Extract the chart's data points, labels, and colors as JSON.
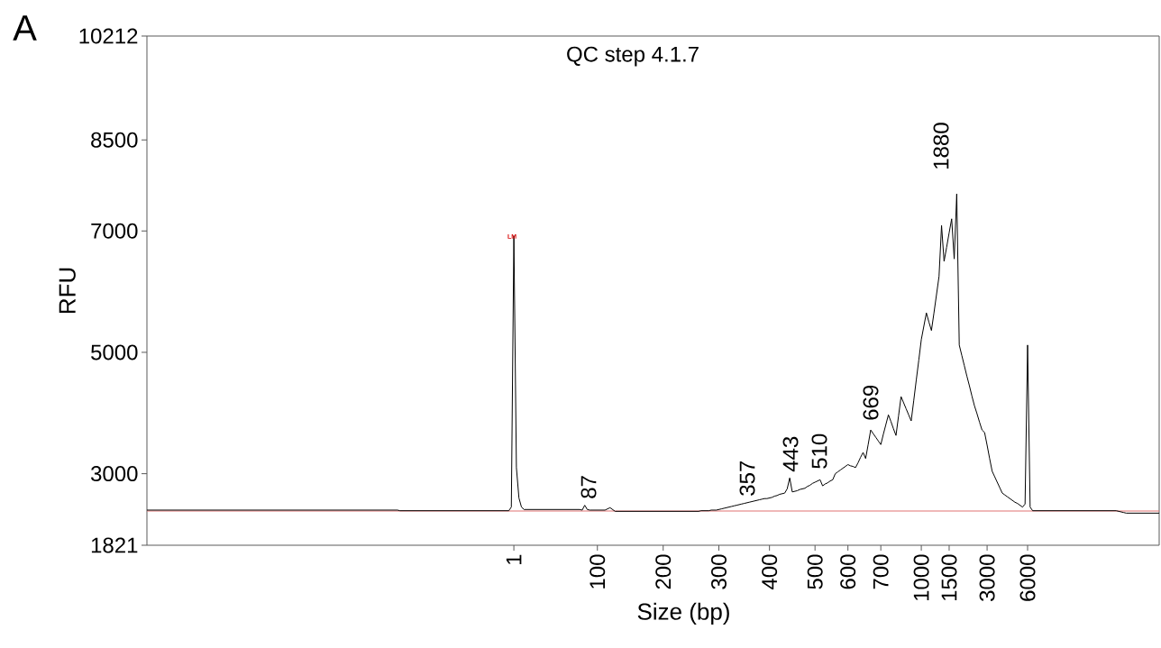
{
  "chart_data": {
    "type": "line",
    "title": "QC step 4.1.7",
    "xlabel": "Size (bp)",
    "ylabel": "RFU",
    "annotations": [
      "A",
      "LM",
      "87",
      "357",
      "443",
      "510",
      "669",
      "1880"
    ],
    "categories": [
      null,
      null,
      null,
      null,
      null,
      null,
      null,
      null,
      null,
      null,
      null,
      null,
      null,
      null,
      null,
      null,
      null,
      null,
      null,
      null,
      null,
      null,
      null,
      null,
      null,
      null,
      null,
      null,
      null,
      null,
      null,
      null,
      null,
      null,
      null,
      null,
      null,
      null,
      null,
      null,
      null,
      null,
      null,
      null,
      null,
      null,
      null,
      null,
      null,
      null,
      null,
      null,
      null,
      null,
      null,
      null,
      null,
      null,
      null,
      null,
      null,
      null,
      null,
      null,
      null,
      null,
      null,
      null,
      null,
      null,
      null,
      null,
      null,
      null,
      null,
      null,
      null,
      null,
      null,
      null,
      null,
      null,
      null,
      null,
      null,
      null,
      null,
      null,
      null,
      null,
      null,
      null,
      null,
      null,
      null,
      null,
      null,
      null,
      null,
      null,
      null,
      null,
      null,
      null,
      null,
      null,
      null,
      null,
      null,
      null,
      null,
      null,
      null,
      null,
      null,
      null,
      null,
      null,
      null,
      null,
      null,
      null,
      null,
      null,
      null,
      null,
      null,
      null,
      null,
      null,
      null,
      null,
      null,
      null,
      null,
      null,
      null,
      null,
      null,
      null,
      null,
      null,
      null,
      null,
      null,
      "1",
      null,
      null,
      null,
      null,
      null,
      null,
      null,
      null,
      null,
      null,
      null,
      null,
      null,
      null,
      null,
      null,
      null,
      null,
      null,
      null,
      null,
      null,
      null,
      null,
      null,
      null,
      null,
      null,
      null,
      null,
      null,
      null,
      "100",
      null,
      null,
      null,
      null,
      null,
      null,
      null,
      null,
      null,
      null,
      null,
      null,
      null,
      null,
      null,
      null,
      null,
      null,
      null,
      null,
      null,
      null,
      null,
      null,
      null,
      "200",
      null,
      null,
      null,
      null,
      null,
      null,
      null,
      null,
      null,
      null,
      null,
      null,
      null,
      null,
      null,
      null,
      null,
      null,
      null,
      null,
      null,
      "300",
      null,
      null,
      null,
      null,
      null,
      null,
      null,
      null,
      null,
      null,
      null,
      null,
      null,
      null,
      null,
      null,
      null,
      null,
      null,
      "400",
      null,
      null,
      null,
      null,
      null,
      null,
      null,
      null,
      null,
      null,
      null,
      null,
      null,
      null,
      null,
      null,
      null,
      "500",
      null,
      null,
      null,
      null,
      null,
      null,
      null,
      null,
      null,
      null,
      null,
      null,
      "600",
      null,
      null,
      null,
      null,
      null,
      null,
      null,
      null,
      null,
      null,
      null,
      null,
      "700",
      null,
      null,
      null,
      null,
      null,
      null,
      null,
      null,
      null,
      null,
      null,
      null,
      null,
      null,
      null,
      "1000",
      null,
      null,
      null,
      null,
      null,
      null,
      null,
      null,
      null,
      null,
      "1500",
      null,
      null,
      null,
      null,
      null,
      null,
      null,
      null,
      null,
      null,
      null,
      null,
      null,
      null,
      "3000",
      null,
      null,
      null,
      null,
      null,
      null,
      null,
      null,
      null,
      null,
      null,
      null,
      null,
      null,
      null,
      "6000",
      null,
      null,
      null,
      null,
      null,
      null,
      null,
      null,
      null,
      null,
      null,
      null,
      null,
      null,
      null,
      null,
      null,
      null,
      null,
      null,
      null,
      null,
      null,
      null,
      null,
      null,
      null,
      null,
      null,
      null,
      null,
      null,
      null,
      null,
      null,
      null,
      null,
      null,
      null,
      null,
      null,
      null,
      null,
      null,
      null,
      null,
      null,
      null,
      null,
      null,
      null,
      null
    ],
    "series": [
      {
        "color": "#000000",
        "values": [
          2400,
          2400,
          2400,
          2400,
          2400,
          2400,
          2400,
          2400,
          2400,
          2400,
          2400,
          2400,
          2400,
          2400,
          2400,
          2400,
          2400,
          2400,
          2400,
          2400,
          2400,
          2400,
          2400,
          2400,
          2400,
          2400,
          2400,
          2400,
          2400,
          2400,
          2400,
          2400,
          2400,
          2400,
          2400,
          2400,
          2400,
          2400,
          2400,
          2400,
          2400,
          2400,
          2400,
          2400,
          2400,
          2400,
          2400,
          2400,
          2400,
          2400,
          2400,
          2400,
          2400,
          2400,
          2400,
          2400,
          2400,
          2400,
          2400,
          2400,
          2400,
          2400,
          2400,
          2400,
          2400,
          2400,
          2400,
          2400,
          2400,
          2400,
          2400,
          2400,
          2400,
          2400,
          2400,
          2400,
          2400,
          2400,
          2400,
          2400,
          2400,
          2400,
          2400,
          2400,
          2400,
          2400,
          2400,
          2400,
          2400,
          2400,
          2400,
          2400,
          2400,
          2400,
          2400,
          2400,
          2400,
          2400,
          2400,
          2400,
          2390,
          2390,
          2390,
          2390,
          2390,
          2390,
          2390,
          2390,
          2390,
          2390,
          2390,
          2390,
          2390,
          2390,
          2390,
          2390,
          2390,
          2390,
          2390,
          2390,
          2390,
          2390,
          2390,
          2390,
          2390,
          2390,
          2390,
          2390,
          2390,
          2390,
          2390,
          2390,
          2390,
          2390,
          2390,
          2390,
          2390,
          2390,
          2390,
          2390,
          2390,
          2390,
          2390,
          2390,
          2450,
          6920,
          3100,
          2600,
          2450,
          2410,
          2410,
          2410,
          2410,
          2410,
          2410,
          2410,
          2410,
          2410,
          2410,
          2410,
          2410,
          2410,
          2410,
          2410,
          2410,
          2410,
          2410,
          2410,
          2410,
          2410,
          2410,
          2410,
          2400,
          2480,
          2410,
          2400,
          2400,
          2400,
          2400,
          2400,
          2400,
          2400,
          2420,
          2440,
          2410,
          2380,
          2380,
          2380,
          2380,
          2380,
          2380,
          2380,
          2380,
          2380,
          2380,
          2380,
          2380,
          2380,
          2380,
          2380,
          2380,
          2380,
          2380,
          2380,
          2380,
          2380,
          2380,
          2380,
          2380,
          2380,
          2380,
          2380,
          2380,
          2380,
          2380,
          2380,
          2380,
          2380,
          2380,
          2390,
          2390,
          2390,
          2390,
          2400,
          2400,
          2400,
          2410,
          2420,
          2430,
          2440,
          2450,
          2460,
          2470,
          2480,
          2490,
          2500,
          2510,
          2520,
          2530,
          2540,
          2550,
          2560,
          2570,
          2580,
          2590,
          2590,
          2600,
          2610,
          2630,
          2640,
          2660,
          2670,
          2680,
          2750,
          2930,
          2700,
          2710,
          2720,
          2740,
          2750,
          2760,
          2790,
          2810,
          2840,
          2860,
          2880,
          2900,
          2800,
          2830,
          2850,
          2880,
          2900,
          3000,
          3030,
          3060,
          3090,
          3120,
          3150,
          3130,
          3120,
          3100,
          3180,
          3270,
          3350,
          3250,
          3480,
          3720,
          3660,
          3600,
          3540,
          3480,
          3650,
          3810,
          3970,
          3860,
          3740,
          3630,
          3950,
          4270,
          4170,
          4070,
          3970,
          3870,
          4200,
          4540,
          4870,
          5210,
          5430,
          5650,
          5500,
          5360,
          5650,
          5950,
          6250,
          7090,
          6500,
          6730,
          6970,
          7200,
          6540,
          7610,
          5120,
          4950,
          4780,
          4610,
          4450,
          4280,
          4120,
          3990,
          3850,
          3720,
          3680,
          3470,
          3250,
          3040,
          2950,
          2860,
          2770,
          2680,
          2650,
          2620,
          2590,
          2560,
          2530,
          2510,
          2480,
          2450,
          2500,
          5120,
          2450,
          2390,
          2390,
          2390,
          2390,
          2390,
          2390,
          2390,
          2390,
          2390,
          2390,
          2390,
          2390,
          2390,
          2390,
          2390,
          2390,
          2390,
          2390,
          2390,
          2390,
          2390,
          2390,
          2390,
          2390,
          2390,
          2390,
          2390,
          2390,
          2390,
          2390,
          2390,
          2390,
          2390,
          2390,
          2380,
          2370,
          2360,
          2350,
          2350,
          2350,
          2350,
          2350,
          2350,
          2350,
          2350,
          2350,
          2350,
          2350,
          2350,
          2350,
          2350
        ]
      }
    ],
    "ylim": [
      1821,
      10212
    ],
    "yticks": [
      1821,
      3000,
      5000,
      7000,
      8500,
      10212
    ],
    "ref_lines": [
      {
        "axis": "y",
        "value": 2385,
        "color": "#e07070"
      }
    ],
    "marker": "none",
    "line_style": "solid"
  }
}
